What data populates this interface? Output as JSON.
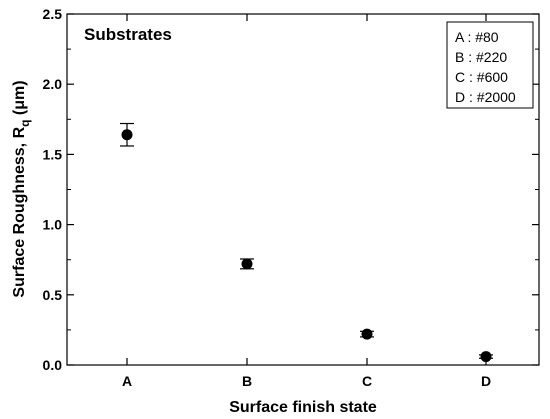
{
  "chart_data": {
    "type": "scatter",
    "panel_label": "Substrates",
    "xlabel": "Surface finish state",
    "ylabel_main": "Surface Roughness, R",
    "ylabel_sub": "q",
    "ylabel_unit": " (μm)",
    "categories": [
      "A",
      "B",
      "C",
      "D"
    ],
    "values": [
      1.64,
      0.72,
      0.22,
      0.06
    ],
    "errors": [
      0.08,
      0.035,
      0.02,
      0.012
    ],
    "ylim": [
      0.0,
      2.5
    ],
    "yticks": [
      0.0,
      0.5,
      1.0,
      1.5,
      2.0,
      2.5
    ],
    "ytick_labels": [
      "0.0",
      "0.5",
      "1.0",
      "1.5",
      "2.0",
      "2.5"
    ],
    "grid": false,
    "legend_position": "top-right",
    "legend": [
      "A : #80",
      "B : #220",
      "C : #600",
      "D : #2000"
    ],
    "marker_color": "#000000"
  }
}
